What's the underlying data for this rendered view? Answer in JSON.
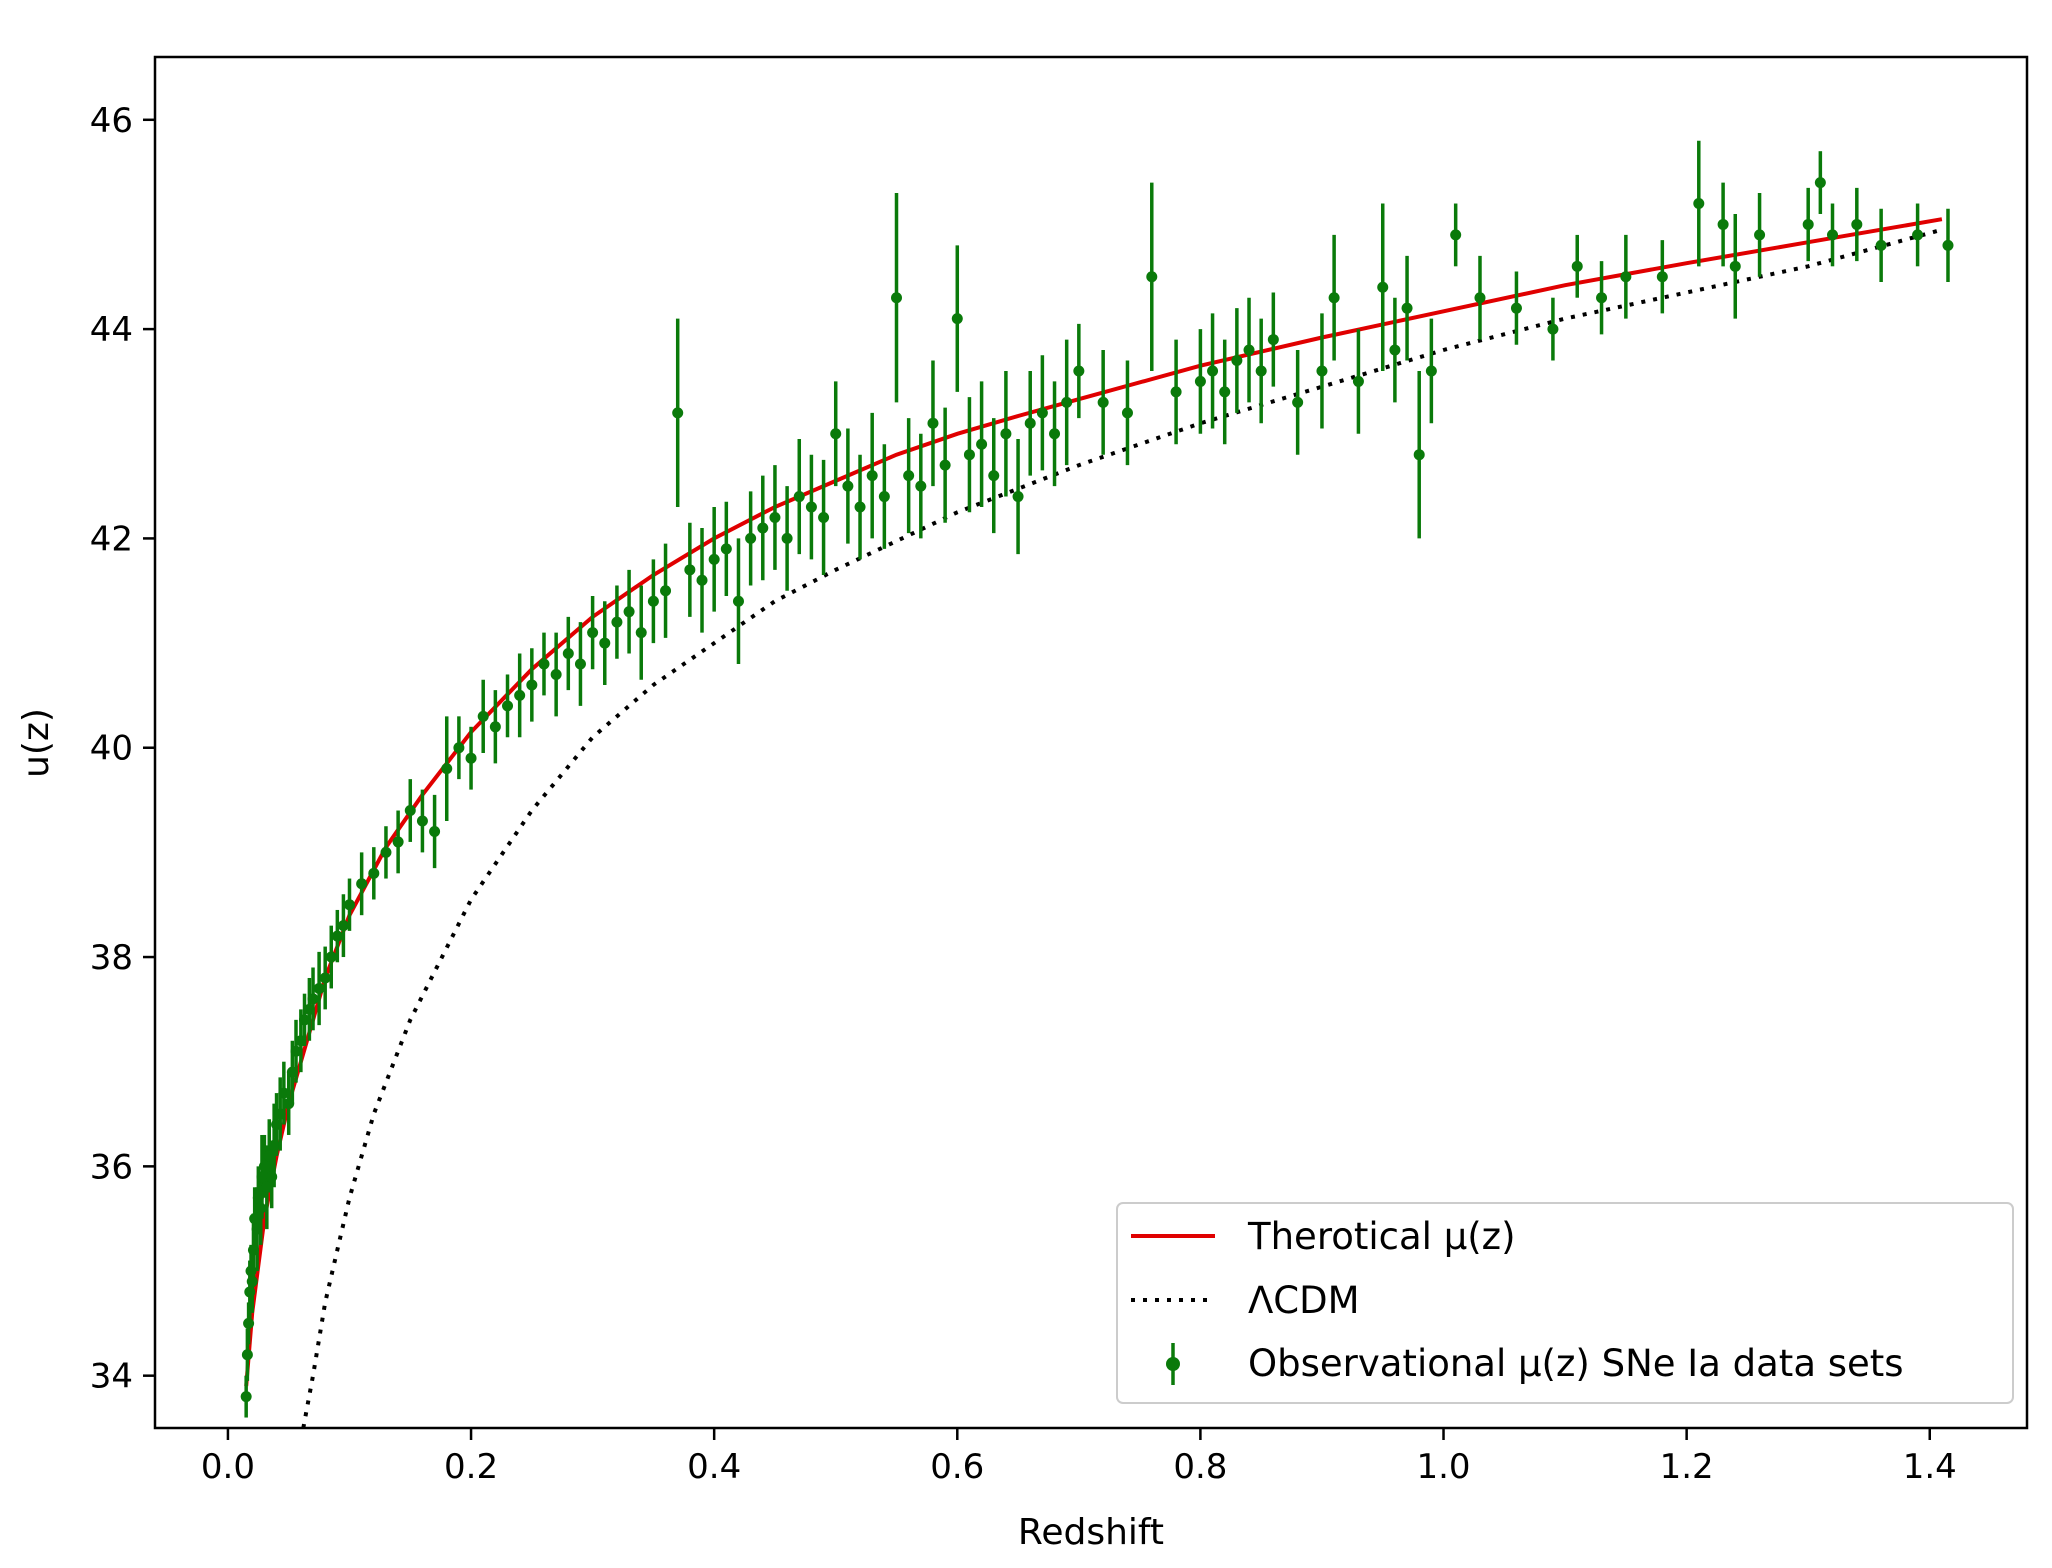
{
  "chart_data": {
    "type": "scatter",
    "title": "",
    "xlabel": "Redshift",
    "ylabel": "u(z)",
    "xlim": [
      -0.06,
      1.48
    ],
    "ylim": [
      33.5,
      46.6
    ],
    "xticks": [
      "0.0",
      "0.2",
      "0.4",
      "0.6",
      "0.8",
      "1.0",
      "1.2",
      "1.4"
    ],
    "xtick_values": [
      0.0,
      0.2,
      0.4,
      0.6,
      0.8,
      1.0,
      1.2,
      1.4
    ],
    "yticks": [
      "34",
      "36",
      "38",
      "40",
      "42",
      "44",
      "46"
    ],
    "ytick_values": [
      34,
      36,
      38,
      40,
      42,
      44,
      46
    ],
    "grid": false,
    "legend_position": "bottom-right",
    "colors": {
      "theory": "#e00000",
      "lcdm": "#000000",
      "observations": "#0a7a0a"
    },
    "series": [
      {
        "name": "Therotical μ(z)",
        "kind": "line",
        "style": "solid",
        "x": [
          0.015,
          0.02,
          0.03,
          0.04,
          0.05,
          0.06,
          0.08,
          0.1,
          0.13,
          0.16,
          0.2,
          0.25,
          0.3,
          0.35,
          0.4,
          0.45,
          0.5,
          0.55,
          0.6,
          0.65,
          0.7,
          0.8,
          0.9,
          1.0,
          1.1,
          1.2,
          1.3,
          1.41
        ],
        "y": [
          33.9,
          34.6,
          35.5,
          36.1,
          36.6,
          37.0,
          37.8,
          38.4,
          39.05,
          39.55,
          40.15,
          40.75,
          41.25,
          41.65,
          42.0,
          42.3,
          42.55,
          42.8,
          43.0,
          43.17,
          43.33,
          43.65,
          43.92,
          44.17,
          44.42,
          44.63,
          44.83,
          45.05
        ]
      },
      {
        "name": "ΛCDM",
        "kind": "line",
        "style": "dotted",
        "x": [
          0.062,
          0.07,
          0.08,
          0.09,
          0.1,
          0.12,
          0.15,
          0.2,
          0.25,
          0.3,
          0.35,
          0.4,
          0.45,
          0.5,
          0.6,
          0.7,
          0.8,
          0.9,
          1.0,
          1.1,
          1.2,
          1.3,
          1.41
        ],
        "y": [
          33.5,
          34.0,
          34.7,
          35.2,
          35.7,
          36.5,
          37.4,
          38.55,
          39.4,
          40.1,
          40.6,
          41.0,
          41.4,
          41.7,
          42.25,
          42.7,
          43.1,
          43.45,
          43.8,
          44.1,
          44.35,
          44.6,
          44.95
        ]
      },
      {
        "name": "Observational μ(z) SNe Ia data sets",
        "kind": "errorbar",
        "x": [
          0.015,
          0.016,
          0.017,
          0.018,
          0.019,
          0.02,
          0.021,
          0.022,
          0.024,
          0.025,
          0.027,
          0.028,
          0.03,
          0.032,
          0.034,
          0.036,
          0.038,
          0.04,
          0.043,
          0.046,
          0.05,
          0.053,
          0.056,
          0.06,
          0.063,
          0.067,
          0.07,
          0.075,
          0.08,
          0.085,
          0.09,
          0.095,
          0.1,
          0.11,
          0.12,
          0.13,
          0.14,
          0.15,
          0.16,
          0.17,
          0.18,
          0.19,
          0.2,
          0.21,
          0.22,
          0.23,
          0.24,
          0.25,
          0.26,
          0.27,
          0.28,
          0.29,
          0.3,
          0.31,
          0.32,
          0.33,
          0.34,
          0.35,
          0.36,
          0.37,
          0.38,
          0.39,
          0.4,
          0.41,
          0.42,
          0.43,
          0.44,
          0.45,
          0.46,
          0.47,
          0.48,
          0.49,
          0.5,
          0.51,
          0.52,
          0.53,
          0.54,
          0.55,
          0.56,
          0.57,
          0.58,
          0.59,
          0.6,
          0.61,
          0.62,
          0.63,
          0.64,
          0.65,
          0.66,
          0.67,
          0.68,
          0.69,
          0.7,
          0.72,
          0.74,
          0.76,
          0.78,
          0.8,
          0.81,
          0.82,
          0.83,
          0.84,
          0.85,
          0.86,
          0.88,
          0.9,
          0.91,
          0.93,
          0.95,
          0.96,
          0.97,
          0.98,
          0.99,
          1.01,
          1.03,
          1.06,
          1.09,
          1.11,
          1.13,
          1.15,
          1.18,
          1.21,
          1.23,
          1.24,
          1.26,
          1.3,
          1.31,
          1.32,
          1.34,
          1.36,
          1.39,
          1.415
        ],
        "y": [
          33.8,
          34.2,
          34.5,
          34.8,
          35.0,
          34.9,
          35.2,
          35.5,
          35.4,
          35.7,
          35.6,
          35.9,
          36.0,
          35.8,
          36.1,
          35.9,
          36.2,
          36.4,
          36.5,
          36.7,
          36.6,
          36.9,
          37.1,
          37.2,
          37.4,
          37.5,
          37.6,
          37.7,
          37.8,
          38.0,
          38.2,
          38.3,
          38.5,
          38.7,
          38.8,
          39.0,
          39.1,
          39.4,
          39.3,
          39.2,
          39.8,
          40.0,
          39.9,
          40.3,
          40.2,
          40.4,
          40.5,
          40.6,
          40.8,
          40.7,
          40.9,
          40.8,
          41.1,
          41.0,
          41.2,
          41.3,
          41.1,
          41.4,
          41.5,
          43.2,
          41.7,
          41.6,
          41.8,
          41.9,
          41.4,
          42.0,
          42.1,
          42.2,
          42.0,
          42.4,
          42.3,
          42.2,
          43.0,
          42.5,
          42.3,
          42.6,
          42.4,
          44.3,
          42.6,
          42.5,
          43.1,
          42.7,
          44.1,
          42.8,
          42.9,
          42.6,
          43.0,
          42.4,
          43.1,
          43.2,
          43.0,
          43.3,
          43.6,
          43.3,
          43.2,
          44.5,
          43.4,
          43.5,
          43.6,
          43.4,
          43.7,
          43.8,
          43.6,
          43.9,
          43.3,
          43.6,
          44.3,
          43.5,
          44.4,
          43.8,
          44.2,
          42.8,
          43.6,
          44.9,
          44.3,
          44.2,
          44.0,
          44.6,
          44.3,
          44.5,
          44.5,
          45.2,
          45.0,
          44.6,
          44.9,
          45.0,
          45.4,
          44.9,
          45.0,
          44.8,
          44.9,
          44.8
        ],
        "err": [
          0.2,
          0.25,
          0.2,
          0.3,
          0.25,
          0.3,
          0.35,
          0.3,
          0.4,
          0.3,
          0.35,
          0.4,
          0.3,
          0.4,
          0.35,
          0.3,
          0.4,
          0.3,
          0.35,
          0.3,
          0.3,
          0.3,
          0.3,
          0.3,
          0.25,
          0.3,
          0.3,
          0.35,
          0.3,
          0.3,
          0.25,
          0.3,
          0.25,
          0.3,
          0.25,
          0.25,
          0.3,
          0.3,
          0.3,
          0.35,
          0.5,
          0.3,
          0.3,
          0.35,
          0.35,
          0.3,
          0.4,
          0.35,
          0.3,
          0.4,
          0.35,
          0.4,
          0.35,
          0.4,
          0.35,
          0.4,
          0.45,
          0.4,
          0.45,
          0.9,
          0.45,
          0.5,
          0.5,
          0.45,
          0.6,
          0.45,
          0.5,
          0.5,
          0.5,
          0.55,
          0.5,
          0.55,
          0.5,
          0.55,
          0.5,
          0.6,
          0.5,
          1.0,
          0.55,
          0.5,
          0.6,
          0.55,
          0.7,
          0.55,
          0.6,
          0.55,
          0.6,
          0.55,
          0.5,
          0.55,
          0.5,
          0.6,
          0.45,
          0.5,
          0.5,
          0.9,
          0.5,
          0.5,
          0.55,
          0.5,
          0.5,
          0.5,
          0.5,
          0.45,
          0.5,
          0.55,
          0.6,
          0.5,
          0.8,
          0.5,
          0.5,
          0.8,
          0.5,
          0.3,
          0.4,
          0.35,
          0.3,
          0.3,
          0.35,
          0.4,
          0.35,
          0.6,
          0.4,
          0.5,
          0.4,
          0.35,
          0.3,
          0.3,
          0.35,
          0.35,
          0.3,
          0.35
        ]
      }
    ]
  }
}
